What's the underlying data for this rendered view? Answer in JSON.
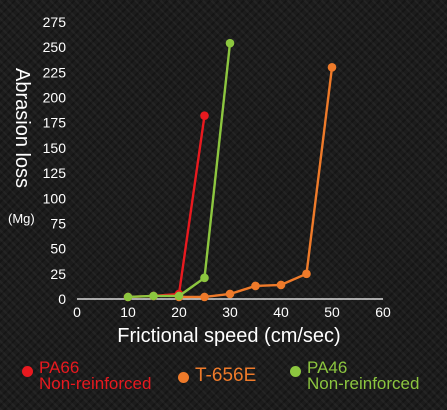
{
  "chart_data": {
    "type": "line",
    "title": "",
    "xlabel": "Frictional speed (cm/sec)",
    "ylabel": "Abrasion loss",
    "ylabel_unit": "(Mg)",
    "xlim": [
      0,
      60
    ],
    "ylim": [
      0,
      275
    ],
    "xticks": [
      0,
      10,
      20,
      30,
      40,
      50,
      60
    ],
    "yticks": [
      0,
      25,
      50,
      75,
      100,
      125,
      150,
      175,
      200,
      225,
      250,
      275
    ],
    "grid": false,
    "legend_position": "bottom",
    "series": [
      {
        "name_lines": [
          "PA66",
          "Non-reinforced"
        ],
        "color": "#e8191f",
        "points": [
          [
            10,
            2
          ],
          [
            15,
            3
          ],
          [
            20,
            5
          ],
          [
            25,
            182
          ]
        ]
      },
      {
        "name_lines": [
          "T-656E"
        ],
        "color": "#ee7a2a",
        "points": [
          [
            20,
            2
          ],
          [
            25,
            2
          ],
          [
            30,
            5
          ],
          [
            35,
            13
          ],
          [
            40,
            14
          ],
          [
            45,
            25
          ],
          [
            50,
            230
          ]
        ]
      },
      {
        "name_lines": [
          "PA46",
          "Non-reinforced"
        ],
        "color": "#8cc63f",
        "points": [
          [
            10,
            2
          ],
          [
            15,
            3
          ],
          [
            20,
            3
          ],
          [
            25,
            21
          ],
          [
            30,
            254
          ]
        ]
      }
    ]
  }
}
